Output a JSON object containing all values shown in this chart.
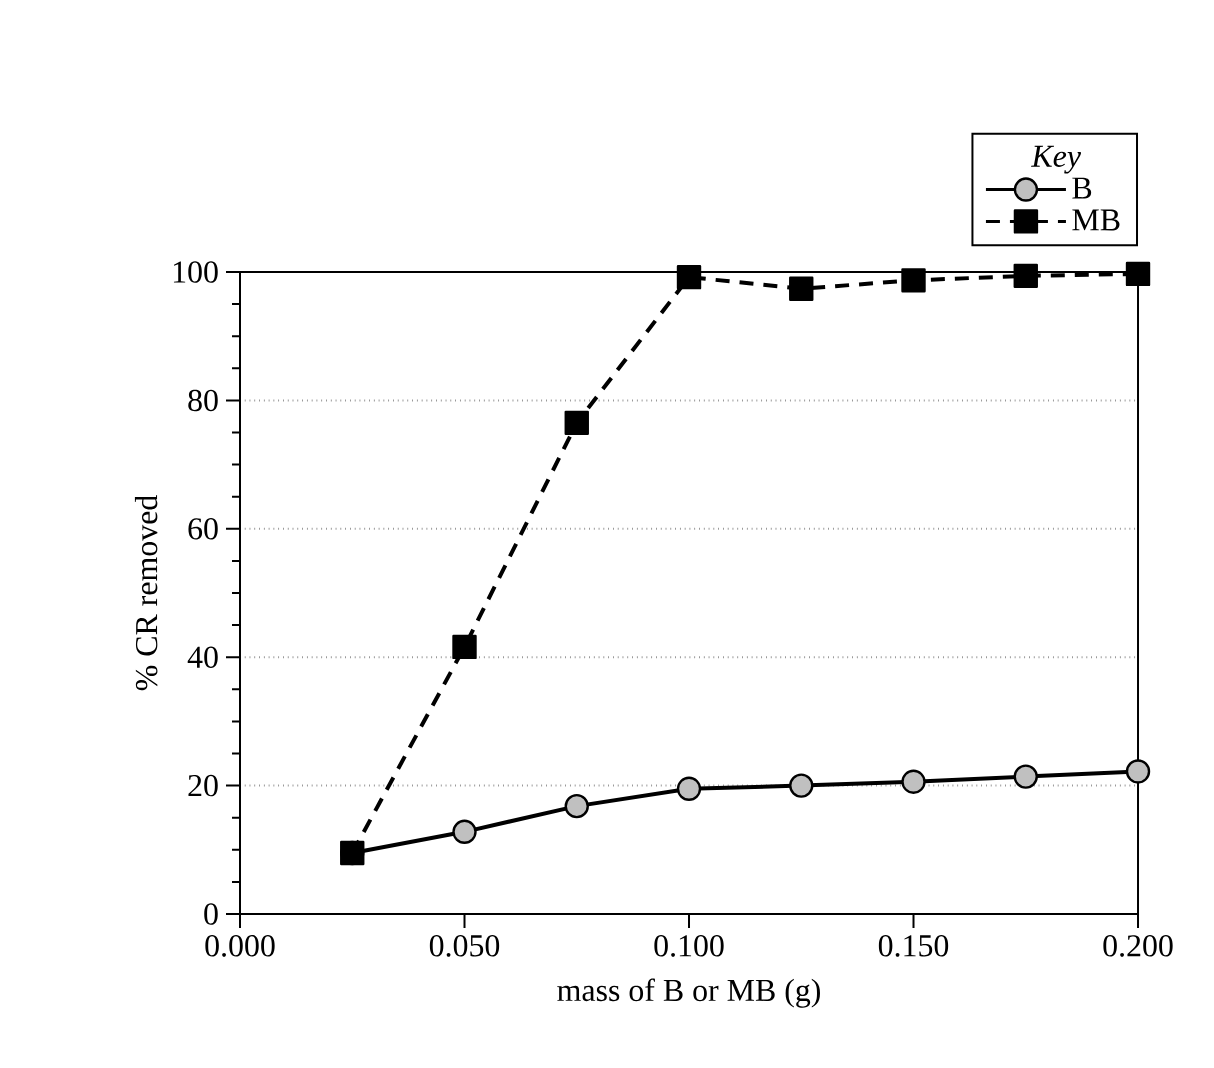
{
  "chart_data": {
    "type": "line",
    "xlabel": "mass of B or MB (g)",
    "ylabel": "% CR removed",
    "legend_title": "Key",
    "x": [
      0.025,
      0.05,
      0.075,
      0.1,
      0.125,
      0.15,
      0.175,
      0.2
    ],
    "series": [
      {
        "name": "B",
        "color": "#c0c0c0",
        "marker": "circle",
        "line_style": "solid",
        "values": [
          9.5,
          12.8,
          16.8,
          19.5,
          20.0,
          20.6,
          21.4,
          22.2
        ]
      },
      {
        "name": "MB",
        "color": "#000000",
        "marker": "square",
        "line_style": "dashed",
        "values": [
          9.5,
          41.6,
          76.5,
          99.2,
          97.4,
          98.7,
          99.4,
          99.7
        ]
      }
    ],
    "xlim": [
      0,
      0.2
    ],
    "xticks": [
      {
        "value": 0,
        "label": "0.000"
      },
      {
        "value": 0.05,
        "label": "0.050"
      },
      {
        "value": 0.1,
        "label": "0.100"
      },
      {
        "value": 0.15,
        "label": "0.150"
      },
      {
        "value": 0.2,
        "label": "0.200"
      }
    ],
    "ylim": [
      0,
      100
    ],
    "yticks": [
      0,
      20,
      40,
      60,
      80,
      100
    ],
    "grid": "y",
    "legend": "top right"
  }
}
